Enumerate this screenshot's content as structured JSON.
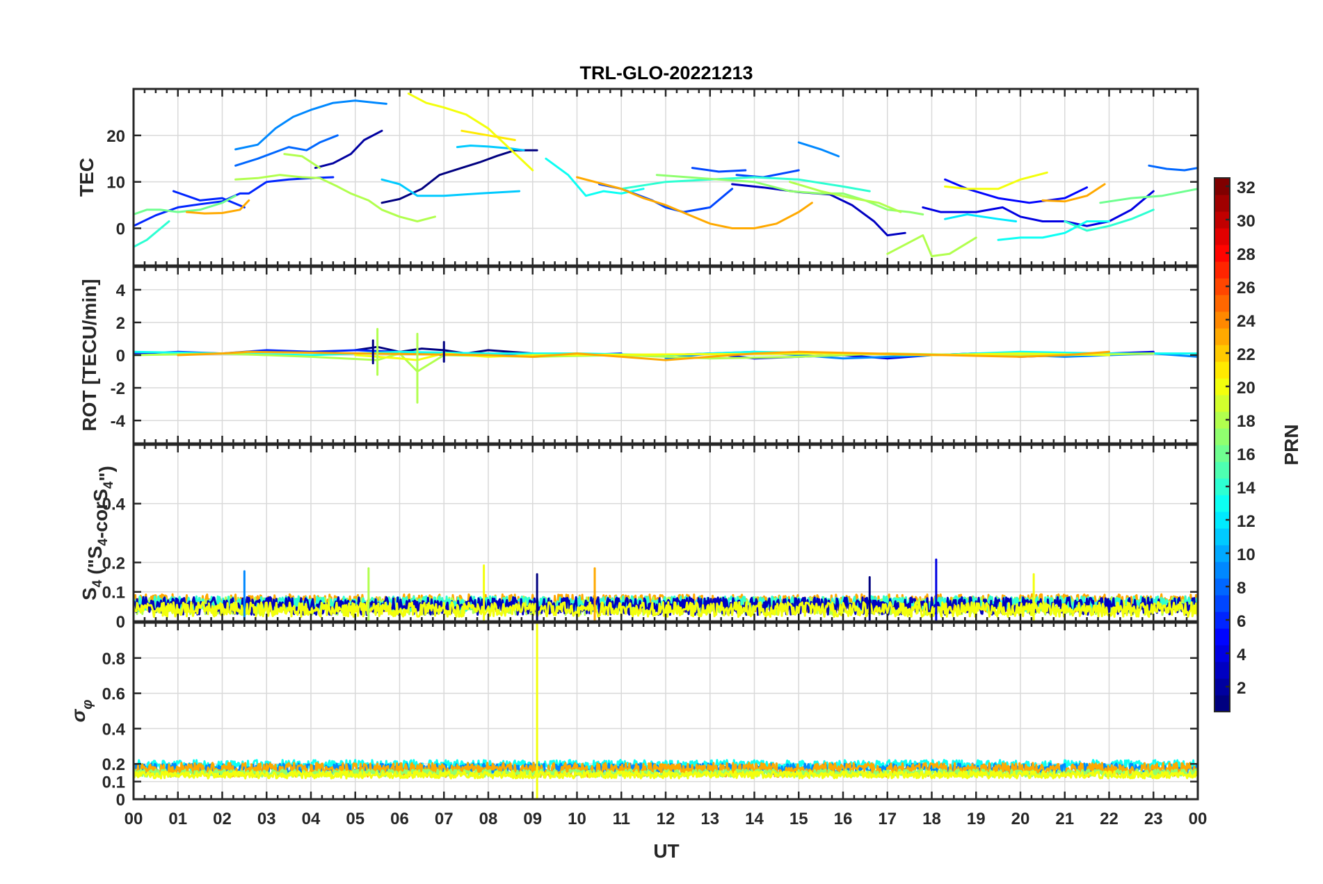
{
  "title": "TRL-GLO-20221213",
  "chart_data": [
    {
      "type": "line",
      "panel": "tec",
      "ylabel": "TEC",
      "ylim": [
        -8,
        30
      ],
      "yticks": [
        0,
        10,
        20
      ],
      "ytick_labels": [
        "0",
        "10",
        "20"
      ],
      "series": [
        {
          "prn": 1,
          "x": [
            5.6,
            6.0,
            6.5,
            6.9,
            7.4,
            7.8,
            8.2,
            8.6,
            9.1
          ],
          "y": [
            5.5,
            6.3,
            8.5,
            11.5,
            13.0,
            14.2,
            15.6,
            16.8,
            16.8
          ]
        },
        {
          "prn": 2,
          "x": [
            4.1,
            4.5,
            4.9,
            5.2,
            5.6
          ],
          "y": [
            13.0,
            14.0,
            16.0,
            19.0,
            21.0
          ]
        },
        {
          "prn": 3,
          "x": [
            13.5,
            14.2,
            15.0,
            15.7,
            16.2,
            16.7,
            17.0,
            17.4
          ],
          "y": [
            9.5,
            8.8,
            7.8,
            7.3,
            5.0,
            1.5,
            -1.5,
            -1.0
          ]
        },
        {
          "prn": 4,
          "x": [
            17.8,
            18.2,
            19.0,
            19.6,
            20.0,
            20.5,
            21.0,
            21.5,
            22.0,
            22.5,
            23.0
          ],
          "y": [
            4.5,
            3.5,
            3.5,
            4.5,
            2.5,
            1.5,
            1.5,
            0.5,
            1.5,
            4.0,
            8.0
          ]
        },
        {
          "prn": 5,
          "x": [
            18.3,
            18.8,
            19.5,
            20.2,
            21.0,
            21.5
          ],
          "y": [
            10.5,
            8.5,
            6.5,
            5.5,
            6.5,
            8.8
          ]
        },
        {
          "prn": 6,
          "x": [
            0.0,
            0.5,
            1.0,
            1.5,
            2.0,
            2.4,
            2.6,
            3.0,
            3.5,
            4.0,
            4.5
          ],
          "y": [
            0.5,
            2.8,
            4.5,
            5.2,
            5.8,
            7.5,
            7.5,
            10.0,
            10.5,
            10.8,
            11.0
          ]
        },
        {
          "prn": 6,
          "x": [
            0.9,
            1.5,
            2.0,
            2.5
          ],
          "y": [
            8.0,
            6.0,
            6.5,
            4.5
          ]
        },
        {
          "prn": 7,
          "x": [
            10.5,
            11.0,
            11.7,
            12.0,
            12.4,
            13.0,
            13.5
          ],
          "y": [
            9.5,
            8.5,
            6.0,
            4.5,
            3.5,
            4.5,
            8.5
          ]
        },
        {
          "prn": 7,
          "x": [
            12.6,
            13.2,
            13.8
          ],
          "y": [
            13.0,
            12.2,
            12.5
          ]
        },
        {
          "prn": 7,
          "x": [
            13.6,
            14.2,
            15.0
          ],
          "y": [
            11.5,
            11.0,
            12.5
          ]
        },
        {
          "prn": 8,
          "x": [
            2.3,
            2.8,
            3.5,
            3.9,
            4.2,
            4.6
          ],
          "y": [
            13.5,
            15.0,
            17.5,
            16.8,
            18.5,
            20.0
          ]
        },
        {
          "prn": 8,
          "x": [
            22.9,
            23.3,
            23.7,
            24.0
          ],
          "y": [
            13.5,
            12.8,
            12.5,
            13.0
          ]
        },
        {
          "prn": 9,
          "x": [
            2.3,
            2.8,
            3.2,
            3.6,
            4.0,
            4.5,
            5.0,
            5.5,
            5.7
          ],
          "y": [
            17.0,
            18.0,
            21.5,
            24.0,
            25.5,
            27.0,
            27.5,
            27.0,
            26.8
          ]
        },
        {
          "prn": 9,
          "x": [
            15.0,
            15.5,
            15.9
          ],
          "y": [
            18.5,
            17.0,
            15.5
          ]
        },
        {
          "prn": 11,
          "x": [
            7.3,
            7.6,
            8.0,
            8.5,
            8.8
          ],
          "y": [
            17.5,
            17.8,
            17.6,
            17.2,
            16.8
          ]
        },
        {
          "prn": 11,
          "x": [
            5.6,
            6.0,
            6.4,
            7.0,
            7.8,
            8.7
          ],
          "y": [
            10.5,
            9.5,
            7.0,
            7.0,
            7.5,
            8.0
          ]
        },
        {
          "prn": 12,
          "x": [
            18.3,
            18.8,
            19.5,
            19.9
          ],
          "y": [
            2.0,
            3.0,
            2.0,
            1.5
          ]
        },
        {
          "prn": 13,
          "x": [
            9.3,
            9.8,
            10.2,
            10.6,
            11.0,
            11.5
          ],
          "y": [
            15.0,
            11.5,
            7.0,
            8.0,
            7.5,
            8.5
          ]
        },
        {
          "prn": 13,
          "x": [
            19.5,
            20.0,
            20.5,
            21.0,
            21.5,
            22.0
          ],
          "y": [
            -2.5,
            -2.0,
            -2.0,
            -1.0,
            1.5,
            1.5
          ]
        },
        {
          "prn": 14,
          "x": [
            0.0,
            0.3,
            0.8
          ],
          "y": [
            -4.0,
            -2.5,
            1.5
          ]
        },
        {
          "prn": 14,
          "x": [
            21.0,
            21.5,
            22.0,
            22.5,
            23.0
          ],
          "y": [
            1.5,
            -0.5,
            0.5,
            2.0,
            4.0
          ]
        },
        {
          "prn": 14,
          "x": [
            11.0,
            12.0,
            13.0,
            14.0,
            15.0,
            16.0,
            16.6
          ],
          "y": [
            8.5,
            10.0,
            10.5,
            11.0,
            10.5,
            9.0,
            8.0
          ]
        },
        {
          "prn": 16,
          "x": [
            0.0,
            0.3,
            0.6,
            1.0,
            1.5,
            2.0,
            2.3
          ],
          "y": [
            3.0,
            4.0,
            4.0,
            3.5,
            4.0,
            5.5,
            7.0
          ]
        },
        {
          "prn": 16,
          "x": [
            21.8,
            22.5,
            23.2,
            24.0
          ],
          "y": [
            5.5,
            6.5,
            7.0,
            8.5
          ]
        },
        {
          "prn": 17,
          "x": [
            11.8,
            12.5,
            13.2,
            14.0,
            14.8,
            15.5,
            16.0,
            16.5,
            17.0,
            17.5,
            17.8
          ],
          "y": [
            11.5,
            11.0,
            10.5,
            10.0,
            8.0,
            7.5,
            7.5,
            6.0,
            4.0,
            3.5,
            3.0
          ]
        },
        {
          "prn": 18,
          "x": [
            2.3,
            2.8,
            3.3,
            3.8,
            4.2,
            4.6,
            4.9,
            5.3,
            5.6,
            6.0,
            6.4,
            6.8
          ],
          "y": [
            10.5,
            10.8,
            11.5,
            11.0,
            10.8,
            9.0,
            7.5,
            6.0,
            4.0,
            2.5,
            1.5,
            2.5
          ]
        },
        {
          "prn": 18,
          "x": [
            3.4,
            3.8,
            4.2
          ],
          "y": [
            16.0,
            15.5,
            13.0
          ]
        },
        {
          "prn": 18,
          "x": [
            17.0,
            17.4,
            17.8,
            18.0,
            18.4,
            19.0
          ],
          "y": [
            -5.5,
            -3.5,
            -1.5,
            -6.0,
            -5.5,
            -2.0
          ]
        },
        {
          "prn": 18,
          "x": [
            14.8,
            15.5,
            16.2,
            16.8,
            17.3
          ],
          "y": [
            10.0,
            8.0,
            6.5,
            5.5,
            3.5
          ]
        },
        {
          "prn": 20,
          "x": [
            6.2,
            6.6,
            7.0,
            7.5,
            8.0,
            8.5,
            9.0
          ],
          "y": [
            29.0,
            27.0,
            26.0,
            24.5,
            21.5,
            17.0,
            12.5
          ]
        },
        {
          "prn": 20,
          "x": [
            18.3,
            18.8,
            19.5,
            20.0,
            20.6
          ],
          "y": [
            9.0,
            8.5,
            8.5,
            10.5,
            12.0
          ]
        },
        {
          "prn": 21,
          "x": [
            7.4,
            8.0,
            8.6
          ],
          "y": [
            21.0,
            20.0,
            19.0
          ]
        },
        {
          "prn": 23,
          "x": [
            1.2,
            1.6,
            2.0,
            2.4,
            2.6
          ],
          "y": [
            3.5,
            3.2,
            3.3,
            4.0,
            6.0
          ]
        },
        {
          "prn": 23,
          "x": [
            10.0,
            11.0,
            11.5,
            12.0,
            12.5,
            13.0,
            13.5,
            14.0,
            14.5,
            15.0,
            15.3
          ],
          "y": [
            11.0,
            8.5,
            6.5,
            5.0,
            3.0,
            1.0,
            0.0,
            0.0,
            1.0,
            3.5,
            5.5
          ]
        },
        {
          "prn": 23,
          "x": [
            20.5,
            21.0,
            21.5,
            21.9
          ],
          "y": [
            6.0,
            5.8,
            7.0,
            9.5
          ]
        }
      ]
    },
    {
      "type": "line",
      "panel": "rot",
      "ylabel": "ROT [TECU/min]",
      "ylim": [
        -5.4,
        5.4
      ],
      "yticks": [
        -4,
        -2,
        0,
        2,
        4
      ],
      "ytick_labels": [
        "-4",
        "-2",
        "0",
        "2",
        "4"
      ],
      "series": [
        {
          "prn": 1,
          "x": [
            5.0,
            5.5,
            6.0,
            6.5,
            7.0,
            7.5,
            8.0,
            8.5,
            9.0
          ],
          "y": [
            0.3,
            0.5,
            0.2,
            0.4,
            0.3,
            0.1,
            0.3,
            0.2,
            0.1
          ]
        },
        {
          "prn": 4,
          "x": [
            12.0,
            13.0,
            14.0,
            15.0,
            16.0,
            17.0,
            18.0,
            19.0,
            20.0,
            21.0,
            22.0,
            23.0
          ],
          "y": [
            0.0,
            0.1,
            -0.2,
            -0.1,
            0.0,
            -0.2,
            0.0,
            0.1,
            -0.1,
            0.0,
            0.1,
            0.2
          ]
        },
        {
          "prn": 6,
          "x": [
            0.0,
            1.0,
            2.0,
            3.0,
            4.0,
            5.0,
            6.0,
            7.0,
            8.0,
            9.0,
            10.0,
            11.0
          ],
          "y": [
            0.1,
            0.2,
            0.1,
            0.3,
            0.2,
            0.3,
            0.2,
            0.0,
            0.1,
            -0.1,
            0.0,
            0.1
          ]
        },
        {
          "prn": 9,
          "x": [
            12.0,
            13.0,
            14.0,
            15.0,
            16.0,
            17.0,
            18.0,
            19.0,
            20.0,
            21.0,
            22.0,
            23.0,
            24.0
          ],
          "y": [
            -0.2,
            0.1,
            0.2,
            0.0,
            -0.2,
            -0.1,
            0.0,
            0.1,
            0.0,
            -0.1,
            0.0,
            0.1,
            -0.1
          ]
        },
        {
          "prn": 13,
          "x": [
            0.0,
            2.0,
            4.0,
            6.0,
            8.0,
            10.0,
            12.0,
            14.0,
            16.0,
            18.0,
            20.0,
            22.0,
            24.0
          ],
          "y": [
            0.2,
            0.1,
            0.0,
            0.2,
            0.1,
            0.1,
            0.0,
            0.2,
            0.1,
            0.0,
            0.2,
            0.1,
            0.1
          ]
        },
        {
          "prn": 18,
          "x": [
            0.0,
            2.0,
            4.0,
            5.5,
            6.0,
            6.4,
            7.0,
            9.0,
            11.0,
            13.0,
            15.0,
            17.0,
            19.0,
            21.0,
            23.0
          ],
          "y": [
            0.0,
            0.1,
            -0.1,
            -0.3,
            0.1,
            -1.0,
            0.0,
            -0.1,
            0.0,
            -0.2,
            -0.1,
            0.1,
            0.0,
            0.0,
            0.1
          ]
        },
        {
          "prn": 20,
          "x": [
            5.0,
            6.0,
            6.4,
            7.0,
            8.0,
            9.0,
            16.0,
            18.0,
            20.0,
            22.0
          ],
          "y": [
            0.0,
            -0.2,
            -0.3,
            0.1,
            -0.1,
            0.0,
            0.1,
            0.0,
            0.1,
            0.0
          ]
        },
        {
          "prn": 23,
          "x": [
            1.0,
            2.0,
            2.6,
            8.0,
            9.0,
            10.0,
            12.0,
            13.0,
            14.0,
            15.0,
            20.0,
            21.0,
            22.0
          ],
          "y": [
            0.0,
            0.1,
            0.2,
            0.0,
            -0.1,
            0.1,
            -0.3,
            -0.1,
            0.1,
            0.2,
            -0.1,
            0.0,
            0.2
          ]
        }
      ],
      "spikes": [
        {
          "prn": 18,
          "x": 5.5,
          "y_min": -1.2,
          "y_max": 1.6
        },
        {
          "prn": 18,
          "x": 6.4,
          "y_min": -2.9,
          "y_max": 1.3
        },
        {
          "prn": 1,
          "x": 5.4,
          "y_min": -0.5,
          "y_max": 0.9
        },
        {
          "prn": 1,
          "x": 7.0,
          "y_min": -0.4,
          "y_max": 0.8
        }
      ]
    },
    {
      "type": "line",
      "panel": "s4",
      "ylabel": "S4 (\"S4-corS4\")",
      "ylim": [
        0,
        0.6
      ],
      "yticks": [
        0,
        0.1,
        0.2,
        0.4
      ],
      "ytick_labels": [
        "0",
        "0.1",
        "0.2",
        "0.4"
      ],
      "baseline_series": [
        {
          "prn": 23,
          "base": 0.05,
          "amp": 0.03
        },
        {
          "prn": 18,
          "base": 0.04,
          "amp": 0.03
        },
        {
          "prn": 14,
          "base": 0.05,
          "amp": 0.025
        },
        {
          "prn": 3,
          "base": 0.04,
          "amp": 0.03
        },
        {
          "prn": 20,
          "base": 0.03,
          "amp": 0.025
        }
      ],
      "spikes": [
        {
          "prn": 18,
          "x": 5.3,
          "y": 0.18
        },
        {
          "prn": 20,
          "x": 7.9,
          "y": 0.19
        },
        {
          "prn": 1,
          "x": 9.1,
          "y": 0.16
        },
        {
          "prn": 23,
          "x": 10.4,
          "y": 0.18
        },
        {
          "prn": 4,
          "x": 18.1,
          "y": 0.21
        },
        {
          "prn": 20,
          "x": 20.3,
          "y": 0.16
        },
        {
          "prn": 9,
          "x": 2.5,
          "y": 0.17
        },
        {
          "prn": 1,
          "x": 16.6,
          "y": 0.15
        }
      ]
    },
    {
      "type": "line",
      "panel": "sigma_phi",
      "ylabel": "σφ",
      "ylim": [
        0,
        1.0
      ],
      "yticks": [
        0,
        0.1,
        0.2,
        0.4,
        0.6,
        0.8
      ],
      "ytick_labels": [
        "0",
        "0.1",
        "0.2",
        "0.4",
        "0.6",
        "0.8"
      ],
      "baseline_series": [
        {
          "prn": 13,
          "base": 0.18,
          "amp": 0.03
        },
        {
          "prn": 9,
          "base": 0.16,
          "amp": 0.03
        },
        {
          "prn": 23,
          "base": 0.15,
          "amp": 0.04
        },
        {
          "prn": 17,
          "base": 0.14,
          "amp": 0.02
        },
        {
          "prn": 20,
          "base": 0.13,
          "amp": 0.02
        }
      ],
      "spikes": [
        {
          "prn": 20,
          "x": 9.1,
          "y": 1.0
        }
      ]
    }
  ],
  "xaxis": {
    "label": "UT",
    "range": [
      0,
      24
    ],
    "ticks": [
      0,
      1,
      2,
      3,
      4,
      5,
      6,
      7,
      8,
      9,
      10,
      11,
      12,
      13,
      14,
      15,
      16,
      17,
      18,
      19,
      20,
      21,
      22,
      23,
      24
    ],
    "tick_labels": [
      "00",
      "01",
      "02",
      "03",
      "04",
      "05",
      "06",
      "07",
      "08",
      "09",
      "10",
      "11",
      "12",
      "13",
      "14",
      "15",
      "16",
      "17",
      "18",
      "19",
      "20",
      "21",
      "22",
      "23",
      "00"
    ]
  },
  "colorbar": {
    "label": "PRN",
    "colormap": "jet",
    "range": [
      1,
      32
    ],
    "ticks": [
      2,
      4,
      6,
      8,
      10,
      12,
      14,
      16,
      18,
      20,
      22,
      24,
      26,
      28,
      30,
      32
    ],
    "tick_labels": [
      "2",
      "4",
      "6",
      "8",
      "10",
      "12",
      "14",
      "16",
      "18",
      "20",
      "22",
      "24",
      "26",
      "28",
      "30",
      "32"
    ]
  }
}
